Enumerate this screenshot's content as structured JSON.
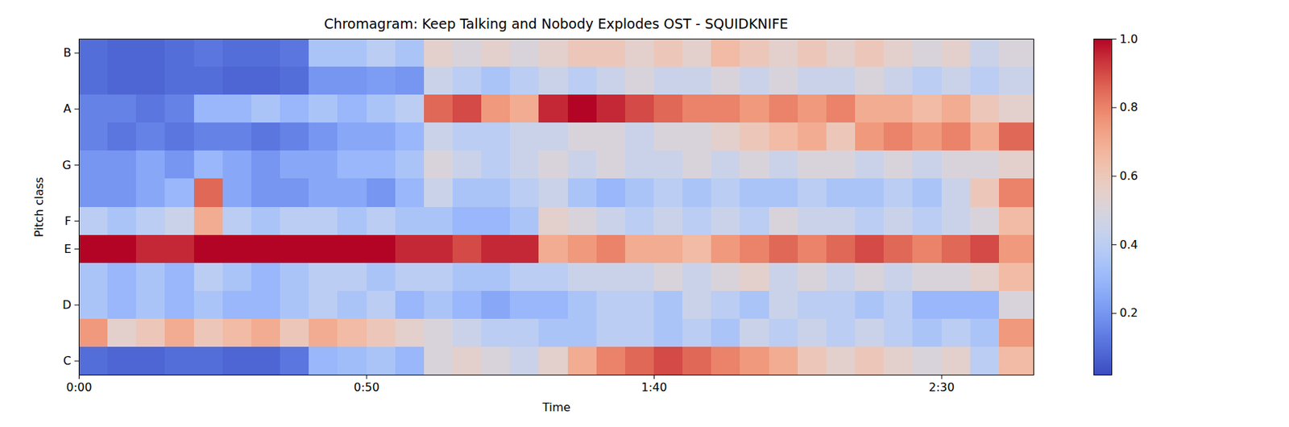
{
  "chart_data": {
    "type": "heatmap",
    "title": "Chromagram: Keep Talking and Nobody Explodes OST - SQUIDKNIFE",
    "x_label": "Time",
    "y_label": "Pitch class",
    "x": [
      0,
      5,
      10,
      15,
      20,
      25,
      30,
      35,
      40,
      45,
      50,
      55,
      60,
      65,
      70,
      75,
      80,
      85,
      90,
      95,
      100,
      105,
      110,
      115,
      120,
      125,
      130,
      135,
      140,
      145,
      150,
      155,
      160
    ],
    "xlim": [
      0,
      166
    ],
    "xticks": [
      {
        "value": 0,
        "label": "0:00"
      },
      {
        "value": 50,
        "label": "0:50"
      },
      {
        "value": 100,
        "label": "1:40"
      },
      {
        "value": 150,
        "label": "2:30"
      }
    ],
    "categories": [
      "C",
      null,
      "D",
      null,
      "E",
      "F",
      null,
      "G",
      null,
      "A",
      null,
      "B"
    ],
    "cells": [
      [
        0.1,
        0.08,
        0.08,
        0.1,
        0.1,
        0.08,
        0.08,
        0.12,
        0.3,
        0.32,
        0.35,
        0.3,
        0.5,
        0.55,
        0.5,
        0.45,
        0.55,
        0.7,
        0.8,
        0.85,
        0.9,
        0.85,
        0.8,
        0.75,
        0.7,
        0.6,
        0.55,
        0.6,
        0.55,
        0.5,
        0.55,
        0.4,
        0.65
      ],
      [
        0.75,
        0.55,
        0.6,
        0.7,
        0.6,
        0.65,
        0.7,
        0.6,
        0.7,
        0.65,
        0.6,
        0.55,
        0.5,
        0.45,
        0.4,
        0.4,
        0.35,
        0.35,
        0.4,
        0.4,
        0.35,
        0.4,
        0.35,
        0.45,
        0.4,
        0.45,
        0.4,
        0.45,
        0.4,
        0.35,
        0.4,
        0.35,
        0.75
      ],
      [
        0.35,
        0.3,
        0.35,
        0.3,
        0.35,
        0.3,
        0.3,
        0.35,
        0.4,
        0.35,
        0.4,
        0.3,
        0.35,
        0.3,
        0.25,
        0.3,
        0.3,
        0.35,
        0.4,
        0.4,
        0.35,
        0.45,
        0.4,
        0.35,
        0.45,
        0.4,
        0.4,
        0.35,
        0.4,
        0.3,
        0.3,
        0.3,
        0.5
      ],
      [
        0.35,
        0.3,
        0.35,
        0.3,
        0.4,
        0.35,
        0.3,
        0.35,
        0.4,
        0.4,
        0.35,
        0.4,
        0.4,
        0.35,
        0.35,
        0.4,
        0.4,
        0.45,
        0.45,
        0.45,
        0.5,
        0.45,
        0.5,
        0.55,
        0.45,
        0.5,
        0.45,
        0.5,
        0.45,
        0.5,
        0.5,
        0.55,
        0.65
      ],
      [
        1,
        1,
        0.95,
        0.95,
        1,
        1,
        1,
        1,
        1,
        1,
        1,
        0.95,
        0.95,
        0.9,
        0.95,
        0.95,
        0.7,
        0.75,
        0.8,
        0.7,
        0.7,
        0.65,
        0.75,
        0.8,
        0.85,
        0.8,
        0.85,
        0.9,
        0.85,
        0.8,
        0.85,
        0.9,
        0.75
      ],
      [
        0.4,
        0.35,
        0.4,
        0.45,
        0.7,
        0.4,
        0.35,
        0.4,
        0.4,
        0.35,
        0.4,
        0.35,
        0.35,
        0.3,
        0.3,
        0.35,
        0.55,
        0.5,
        0.45,
        0.4,
        0.45,
        0.4,
        0.45,
        0.4,
        0.5,
        0.45,
        0.45,
        0.4,
        0.45,
        0.4,
        0.45,
        0.5,
        0.65
      ],
      [
        0.2,
        0.2,
        0.25,
        0.3,
        0.85,
        0.25,
        0.2,
        0.2,
        0.25,
        0.25,
        0.2,
        0.3,
        0.45,
        0.35,
        0.35,
        0.4,
        0.45,
        0.35,
        0.3,
        0.35,
        0.4,
        0.35,
        0.4,
        0.35,
        0.35,
        0.4,
        0.35,
        0.35,
        0.4,
        0.35,
        0.45,
        0.6,
        0.8
      ],
      [
        0.2,
        0.2,
        0.25,
        0.2,
        0.3,
        0.25,
        0.2,
        0.25,
        0.25,
        0.3,
        0.3,
        0.35,
        0.5,
        0.45,
        0.4,
        0.45,
        0.5,
        0.45,
        0.5,
        0.45,
        0.45,
        0.5,
        0.45,
        0.5,
        0.45,
        0.5,
        0.5,
        0.45,
        0.5,
        0.45,
        0.5,
        0.5,
        0.55
      ],
      [
        0.15,
        0.12,
        0.15,
        0.12,
        0.15,
        0.15,
        0.12,
        0.15,
        0.2,
        0.25,
        0.25,
        0.3,
        0.45,
        0.4,
        0.4,
        0.45,
        0.45,
        0.5,
        0.5,
        0.45,
        0.5,
        0.5,
        0.55,
        0.6,
        0.65,
        0.7,
        0.6,
        0.75,
        0.8,
        0.75,
        0.8,
        0.7,
        0.85
      ],
      [
        0.15,
        0.15,
        0.12,
        0.15,
        0.3,
        0.3,
        0.35,
        0.3,
        0.35,
        0.3,
        0.35,
        0.4,
        0.85,
        0.9,
        0.75,
        0.7,
        0.95,
        1,
        0.95,
        0.9,
        0.85,
        0.8,
        0.8,
        0.75,
        0.8,
        0.75,
        0.8,
        0.7,
        0.7,
        0.65,
        0.7,
        0.6,
        0.55
      ],
      [
        0.1,
        0.08,
        0.08,
        0.1,
        0.1,
        0.08,
        0.08,
        0.1,
        0.2,
        0.2,
        0.22,
        0.2,
        0.45,
        0.4,
        0.35,
        0.4,
        0.45,
        0.4,
        0.45,
        0.5,
        0.45,
        0.45,
        0.5,
        0.45,
        0.5,
        0.45,
        0.45,
        0.5,
        0.45,
        0.4,
        0.45,
        0.4,
        0.45
      ],
      [
        0.1,
        0.08,
        0.08,
        0.1,
        0.12,
        0.1,
        0.1,
        0.12,
        0.35,
        0.35,
        0.4,
        0.35,
        0.55,
        0.5,
        0.55,
        0.5,
        0.55,
        0.6,
        0.6,
        0.55,
        0.6,
        0.55,
        0.65,
        0.6,
        0.55,
        0.6,
        0.55,
        0.6,
        0.55,
        0.5,
        0.55,
        0.45,
        0.5
      ]
    ],
    "color": "coolwarm",
    "colorbar_range": [
      0.02,
      1
    ],
    "colorbar_ticks": [
      0.2,
      0.4,
      0.6,
      0.8,
      {
        "value": 1,
        "label": "1.0"
      }
    ]
  }
}
